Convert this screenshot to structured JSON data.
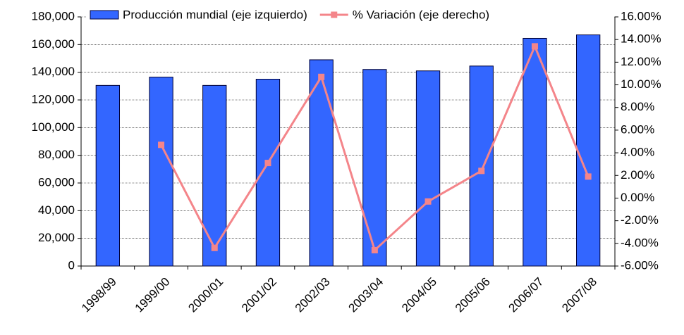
{
  "chart_data": {
    "type": "bar-line",
    "categories": [
      "1998/99",
      "1999/00",
      "2000/01",
      "2001/02",
      "2002/03",
      "2003/04",
      "2004/05",
      "2005/06",
      "2006/07",
      "2007/08"
    ],
    "series": [
      {
        "name": "Producción mundial (eje izquierdo)",
        "type": "bar",
        "color": "#3366ff",
        "values": [
          130500,
          136500,
          130500,
          135000,
          149000,
          142000,
          141000,
          144500,
          164500,
          167000
        ]
      },
      {
        "name": "% Variación (eje derecho)",
        "type": "line",
        "axis": "y2",
        "color": "#f4858a",
        "values": [
          null,
          4.7,
          -4.4,
          3.1,
          10.7,
          -4.6,
          -0.3,
          2.4,
          13.4,
          1.9
        ]
      }
    ],
    "ylim": [
      0,
      180000
    ],
    "yticks": [
      0,
      {
        "value": 20000,
        "label": "20,000"
      },
      {
        "value": 40000,
        "label": "40,000"
      },
      {
        "value": 60000,
        "label": "60,000"
      },
      {
        "value": 80000,
        "label": "80,000"
      },
      {
        "value": 100000,
        "label": "100,000"
      },
      {
        "value": 120000,
        "label": "120,000"
      },
      {
        "value": 140000,
        "label": "140,000"
      },
      {
        "value": 160000,
        "label": "160,000"
      },
      {
        "value": 180000,
        "label": "180,000"
      }
    ],
    "y2lim": [
      -6,
      16
    ],
    "y2ticks": [
      {
        "value": -6,
        "label": "-6.00%"
      },
      {
        "value": -4,
        "label": "-4.00%"
      },
      {
        "value": -2,
        "label": "-2.00%"
      },
      {
        "value": 0,
        "label": "0.00%"
      },
      {
        "value": 2,
        "label": "2.00%"
      },
      {
        "value": 4,
        "label": "4.00%"
      },
      {
        "value": 6,
        "label": "6.00%"
      },
      {
        "value": 8,
        "label": "8.00%"
      },
      {
        "value": 10,
        "label": "10.00%"
      },
      {
        "value": 12,
        "label": "12.00%"
      },
      {
        "value": 14,
        "label": "14.00%"
      },
      {
        "value": 16,
        "label": "16.00%"
      }
    ],
    "grid": true,
    "legend": "top"
  }
}
